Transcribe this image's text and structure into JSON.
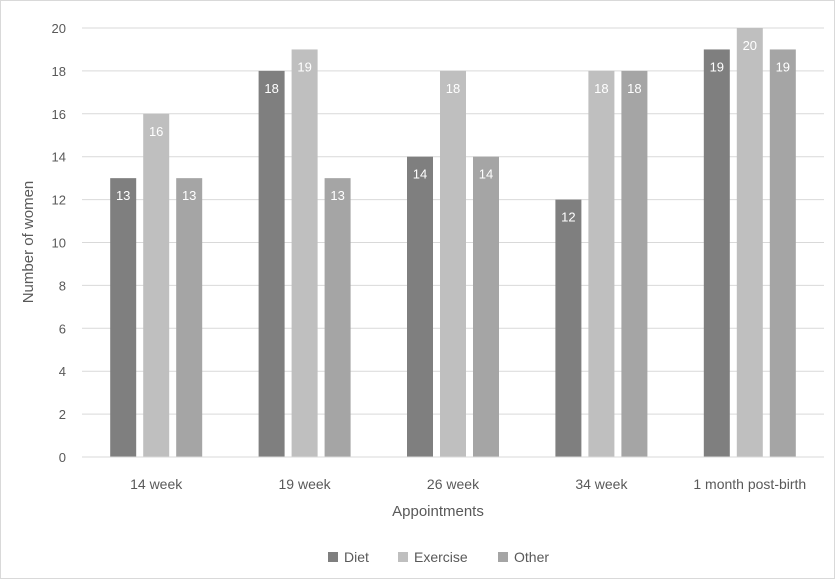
{
  "chart_data": {
    "type": "bar",
    "title": "",
    "xlabel": "Appointments",
    "ylabel": "Number of women",
    "ylim": [
      0,
      20
    ],
    "yticks": [
      0,
      2,
      4,
      6,
      8,
      10,
      12,
      14,
      16,
      18,
      20
    ],
    "categories": [
      "14 week",
      "19 week",
      "26 week",
      "34 week",
      "1 month post-birth"
    ],
    "series": [
      {
        "name": "Diet",
        "color": "#7f7f7f",
        "values": [
          13,
          18,
          14,
          12,
          19
        ]
      },
      {
        "name": "Exercise",
        "color": "#bfbfbf",
        "values": [
          16,
          19,
          18,
          18,
          20
        ]
      },
      {
        "name": "Other",
        "color": "#a5a5a5",
        "values": [
          13,
          13,
          14,
          18,
          19
        ]
      }
    ],
    "grid": true,
    "legend_position": "bottom",
    "data_labels": true
  }
}
